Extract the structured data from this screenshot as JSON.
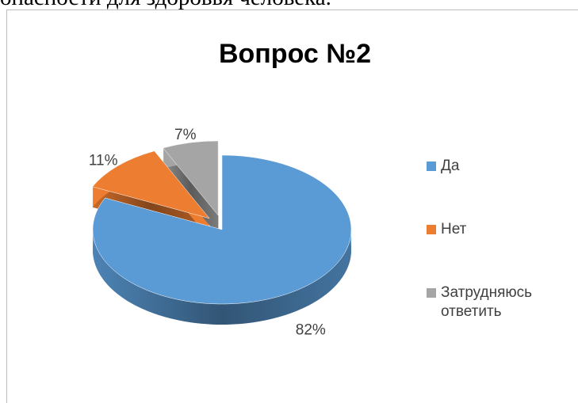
{
  "page_text": "опасности для здоровья человека.",
  "chart_data": {
    "type": "pie",
    "title": "Вопрос №2",
    "categories": [
      "Да",
      "Нет",
      "Затрудняюсь ответить"
    ],
    "values": [
      82,
      11,
      7
    ],
    "value_labels": [
      "82%",
      "11%",
      "7%"
    ],
    "colors": [
      "#5b9bd5",
      "#ed7d31",
      "#a5a5a5"
    ],
    "legend": "right"
  }
}
